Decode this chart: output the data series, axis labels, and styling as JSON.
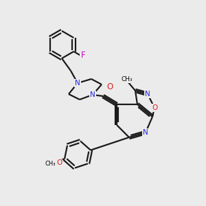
{
  "bg_color": "#ebebeb",
  "bond_color": "#1a1a1a",
  "bond_width": 1.6,
  "atom_colors": {
    "N": "#2222dd",
    "O": "#dd2222",
    "F": "#cc00cc",
    "C": "#1a1a1a"
  },
  "font_size": 8.5
}
